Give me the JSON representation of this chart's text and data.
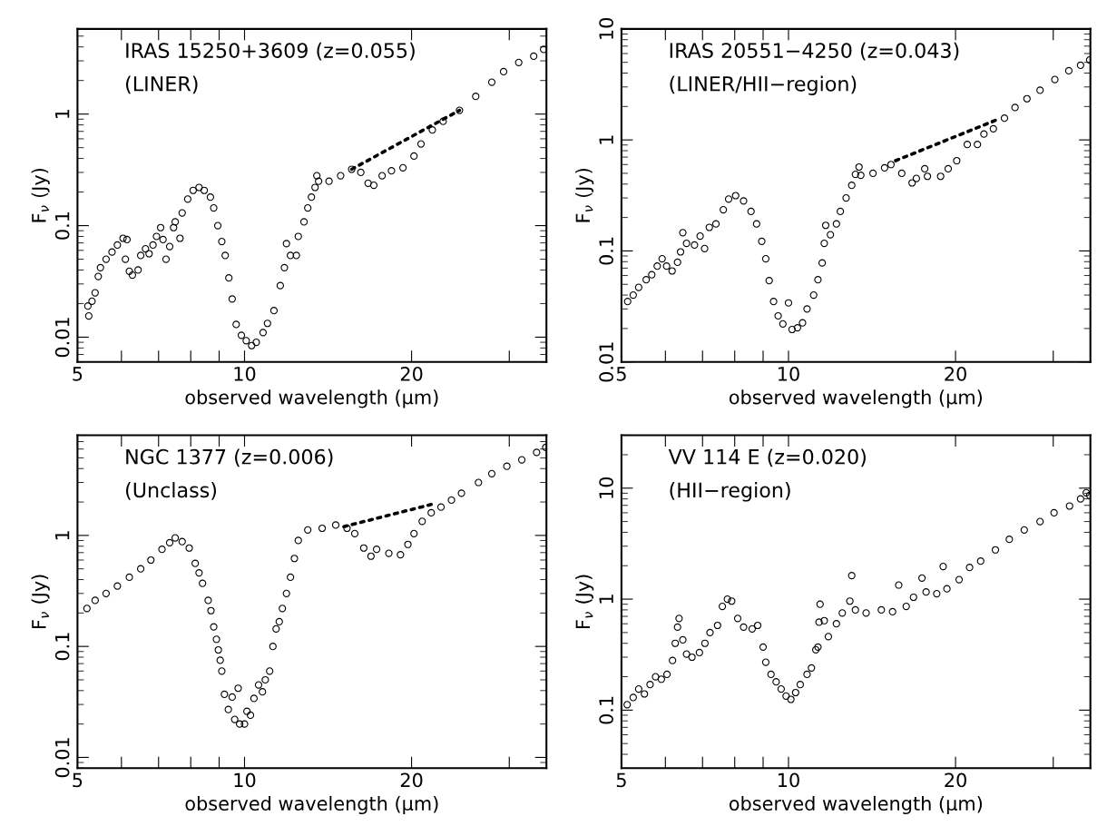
{
  "chart_data": [
    {
      "type": "scatter",
      "xlabel": "observed wavelength (μm)",
      "ylabel": "F$_{ν}$ (Jy)",
      "annotations": [
        "IRAS 15250+3609 (z=0.055)",
        "(LINER)"
      ],
      "log": "xy",
      "marker": "circle",
      "grid": false,
      "legend": false,
      "xlim": [
        5,
        35
      ],
      "xticks": [
        5,
        {
          "value": 6,
          "label": null
        },
        {
          "value": 7,
          "label": null
        },
        {
          "value": 8,
          "label": null
        },
        {
          "value": 9,
          "label": null
        },
        10,
        20,
        {
          "value": 30,
          "label": null
        }
      ],
      "ylim": [
        0.006,
        5.8
      ],
      "yticks": [
        0.01,
        0.1,
        1
      ],
      "series": [
        {
          "color": "#000000",
          "x": [
            5.22,
            5.24,
            5.31,
            5.38,
            5.45,
            5.5,
            5.63,
            5.77,
            5.9,
            6.04,
            6.14,
            6.1,
            6.2,
            6.28,
            6.43,
            6.5,
            6.63,
            6.73,
            6.84,
            6.94,
            7.06,
            7.13,
            7.22,
            7.33,
            7.45,
            7.5,
            7.65,
            7.72,
            7.9,
            8.08,
            8.28,
            8.46,
            8.68,
            8.8,
            8.95,
            9.1,
            9.23,
            9.37,
            9.5,
            9.66,
            9.87,
            10.07,
            10.3,
            10.5,
            10.8,
            11.0,
            11.3,
            11.6,
            11.8,
            11.9,
            12.1,
            12.4,
            12.5,
            12.8,
            13.0,
            13.2,
            13.4,
            13.5,
            13.6,
            14.2,
            14.9,
            15.6,
            16.2,
            16.7,
            17.1,
            17.7,
            18.4,
            19.3,
            20.2,
            20.8,
            21.8,
            22.8,
            24.4,
            26.1,
            27.9,
            29.3,
            31.2,
            33.2,
            34.6
          ],
          "values": [
            0.019,
            0.0155,
            0.021,
            0.025,
            0.035,
            0.042,
            0.05,
            0.058,
            0.067,
            0.077,
            0.075,
            0.05,
            0.039,
            0.036,
            0.04,
            0.054,
            0.062,
            0.056,
            0.067,
            0.08,
            0.096,
            0.075,
            0.05,
            0.065,
            0.096,
            0.108,
            0.077,
            0.13,
            0.173,
            0.207,
            0.22,
            0.207,
            0.18,
            0.144,
            0.1,
            0.072,
            0.054,
            0.034,
            0.022,
            0.013,
            0.0104,
            0.0093,
            0.0084,
            0.009,
            0.011,
            0.0133,
            0.0173,
            0.029,
            0.042,
            0.069,
            0.054,
            0.054,
            0.08,
            0.108,
            0.144,
            0.18,
            0.22,
            0.28,
            0.25,
            0.25,
            0.28,
            0.32,
            0.3,
            0.24,
            0.23,
            0.28,
            0.31,
            0.33,
            0.42,
            0.54,
            0.72,
            0.86,
            1.08,
            1.44,
            1.93,
            2.4,
            2.9,
            3.3,
            3.8
          ]
        },
        {
          "type": "line",
          "line_style": "dotted",
          "marker": "none",
          "color": "#000000",
          "x": [
            15.6,
            24.4
          ],
          "values": [
            0.32,
            1.08
          ]
        }
      ]
    },
    {
      "type": "scatter",
      "xlabel": "observed wavelength (μm)",
      "ylabel": "F$_{ν}$ (Jy)",
      "annotations": [
        "IRAS 20551−4250 (z=0.043)",
        "(LINER/HII−region)"
      ],
      "log": "xy",
      "marker": "circle",
      "grid": false,
      "legend": false,
      "xlim": [
        5,
        35
      ],
      "xticks": [
        5,
        {
          "value": 6,
          "label": null
        },
        {
          "value": 7,
          "label": null
        },
        {
          "value": 8,
          "label": null
        },
        {
          "value": 9,
          "label": null
        },
        10,
        20,
        {
          "value": 30,
          "label": null
        }
      ],
      "ylim": [
        0.01,
        10
      ],
      "yticks": [
        0.01,
        0.1,
        1,
        10
      ],
      "series": [
        {
          "color": "#000000",
          "x": [
            5.13,
            5.25,
            5.37,
            5.54,
            5.67,
            5.8,
            5.92,
            6.03,
            6.17,
            6.31,
            6.39,
            6.45,
            6.55,
            6.77,
            6.93,
            7.06,
            7.2,
            7.4,
            7.63,
            7.8,
            8.03,
            8.3,
            8.56,
            8.76,
            8.95,
            9.1,
            9.23,
            9.4,
            9.58,
            9.77,
            10.0,
            10.15,
            10.38,
            10.6,
            10.8,
            11.1,
            11.3,
            11.5,
            11.6,
            11.67,
            11.9,
            12.2,
            12.4,
            12.7,
            13.0,
            13.2,
            13.4,
            13.5,
            14.2,
            14.9,
            15.3,
            16.0,
            16.7,
            17.0,
            17.6,
            17.8,
            18.8,
            19.4,
            20.1,
            21.0,
            21.9,
            22.5,
            23.4,
            24.5,
            25.6,
            26.9,
            28.4,
            30.2,
            32.0,
            33.6,
            34.9
          ],
          "values": [
            0.035,
            0.04,
            0.047,
            0.055,
            0.061,
            0.073,
            0.085,
            0.073,
            0.066,
            0.079,
            0.098,
            0.146,
            0.117,
            0.113,
            0.136,
            0.105,
            0.163,
            0.175,
            0.235,
            0.293,
            0.315,
            0.282,
            0.227,
            0.175,
            0.122,
            0.085,
            0.054,
            0.035,
            0.026,
            0.022,
            0.034,
            0.0196,
            0.0203,
            0.0225,
            0.03,
            0.04,
            0.055,
            0.078,
            0.117,
            0.17,
            0.14,
            0.175,
            0.227,
            0.3,
            0.39,
            0.49,
            0.57,
            0.48,
            0.5,
            0.56,
            0.6,
            0.5,
            0.41,
            0.45,
            0.55,
            0.47,
            0.47,
            0.55,
            0.65,
            0.91,
            0.91,
            1.13,
            1.26,
            1.57,
            1.96,
            2.35,
            2.8,
            3.5,
            4.2,
            4.7,
            5.25
          ]
        },
        {
          "type": "line",
          "line_style": "dotted",
          "marker": "none",
          "color": "#000000",
          "x": [
            15.6,
            23.6
          ],
          "values": [
            0.65,
            1.5
          ]
        }
      ]
    },
    {
      "type": "scatter",
      "xlabel": "observed wavelength (μm)",
      "ylabel": "F$_{ν}$ (Jy)",
      "annotations": [
        "NGC 1377 (z=0.006)",
        "(Unclass)"
      ],
      "log": "xy",
      "marker": "circle",
      "grid": false,
      "legend": false,
      "xlim": [
        5,
        35
      ],
      "xticks": [
        5,
        {
          "value": 6,
          "label": null
        },
        {
          "value": 7,
          "label": null
        },
        {
          "value": 8,
          "label": null
        },
        {
          "value": 9,
          "label": null
        },
        10,
        20,
        {
          "value": 30,
          "label": null
        }
      ],
      "ylim": [
        0.008,
        8
      ],
      "yticks": [
        0.01,
        0.1,
        1
      ],
      "series": [
        {
          "color": "#000000",
          "x": [
            5.2,
            5.38,
            5.63,
            5.9,
            6.2,
            6.5,
            6.78,
            7.1,
            7.33,
            7.5,
            7.72,
            7.95,
            8.15,
            8.28,
            8.4,
            8.6,
            8.7,
            8.8,
            8.9,
            8.97,
            9.04,
            9.1,
            9.2,
            9.35,
            9.5,
            9.6,
            9.74,
            9.8,
            10.0,
            10.1,
            10.25,
            10.4,
            10.6,
            10.77,
            10.9,
            11.1,
            11.25,
            11.4,
            11.55,
            11.7,
            11.9,
            12.1,
            12.3,
            12.5,
            13.0,
            13.8,
            14.6,
            15.3,
            15.8,
            16.4,
            16.9,
            17.3,
            18.2,
            19.1,
            19.7,
            20.2,
            20.9,
            21.7,
            22.6,
            23.6,
            24.6,
            26.4,
            27.9,
            29.7,
            31.6,
            33.6,
            34.9
          ],
          "values": [
            0.22,
            0.26,
            0.3,
            0.35,
            0.42,
            0.5,
            0.6,
            0.75,
            0.86,
            0.95,
            0.88,
            0.77,
            0.56,
            0.46,
            0.37,
            0.26,
            0.21,
            0.15,
            0.116,
            0.093,
            0.075,
            0.06,
            0.037,
            0.027,
            0.035,
            0.022,
            0.042,
            0.02,
            0.02,
            0.026,
            0.024,
            0.034,
            0.045,
            0.039,
            0.05,
            0.06,
            0.1,
            0.144,
            0.167,
            0.22,
            0.3,
            0.42,
            0.62,
            0.9,
            1.12,
            1.16,
            1.24,
            1.16,
            1.04,
            0.77,
            0.65,
            0.75,
            0.69,
            0.67,
            0.83,
            1.04,
            1.34,
            1.6,
            1.8,
            2.08,
            2.4,
            3.0,
            3.6,
            4.2,
            4.8,
            5.6,
            6.2
          ]
        },
        {
          "type": "line",
          "line_style": "dotted",
          "marker": "none",
          "color": "#000000",
          "x": [
            15.1,
            21.7
          ],
          "values": [
            1.2,
            1.9
          ]
        }
      ]
    },
    {
      "type": "scatter",
      "xlabel": "observed wavelength (μm)",
      "ylabel": "F$_{ν}$ (Jy)",
      "annotations": [
        "VV 114 E (z=0.020)",
        "(HII−region)"
      ],
      "log": "xy",
      "marker": "circle",
      "grid": false,
      "legend": false,
      "xlim": [
        5,
        35
      ],
      "xticks": [
        5,
        {
          "value": 6,
          "label": null
        },
        {
          "value": 7,
          "label": null
        },
        {
          "value": 8,
          "label": null
        },
        {
          "value": 9,
          "label": null
        },
        10,
        20,
        {
          "value": 30,
          "label": null
        }
      ],
      "ylim": [
        0.03,
        30
      ],
      "yticks": [
        0.1,
        1,
        10
      ],
      "series": [
        {
          "color": "#000000",
          "x": [
            5.12,
            5.25,
            5.37,
            5.5,
            5.63,
            5.76,
            5.9,
            6.04,
            6.18,
            6.25,
            6.31,
            6.35,
            6.45,
            6.55,
            6.7,
            6.91,
            7.07,
            7.22,
            7.45,
            7.6,
            7.76,
            7.9,
            8.1,
            8.3,
            8.6,
            8.8,
            9.0,
            9.1,
            9.3,
            9.5,
            9.7,
            9.9,
            10.1,
            10.3,
            10.5,
            10.8,
            11.0,
            11.2,
            11.3,
            11.35,
            11.4,
            11.6,
            11.8,
            12.2,
            12.5,
            12.9,
            13.0,
            13.2,
            13.8,
            14.7,
            15.4,
            15.8,
            16.3,
            16.8,
            17.4,
            17.7,
            18.5,
            19.0,
            19.3,
            20.3,
            21.2,
            22.2,
            23.6,
            25.0,
            26.6,
            28.4,
            30.1,
            32.1,
            33.6,
            34.4,
            34.9
          ],
          "values": [
            0.112,
            0.13,
            0.155,
            0.14,
            0.17,
            0.2,
            0.19,
            0.21,
            0.28,
            0.4,
            0.56,
            0.67,
            0.43,
            0.32,
            0.3,
            0.33,
            0.4,
            0.5,
            0.58,
            0.86,
            1.0,
            0.96,
            0.67,
            0.56,
            0.54,
            0.58,
            0.37,
            0.27,
            0.21,
            0.18,
            0.155,
            0.134,
            0.125,
            0.144,
            0.17,
            0.21,
            0.24,
            0.35,
            0.37,
            0.62,
            0.9,
            0.64,
            0.46,
            0.6,
            0.75,
            0.96,
            1.63,
            0.8,
            0.75,
            0.8,
            0.77,
            1.34,
            0.86,
            1.04,
            1.55,
            1.16,
            1.12,
            1.97,
            1.24,
            1.5,
            1.93,
            2.2,
            2.78,
            3.46,
            4.2,
            5.0,
            6.0,
            6.9,
            8.0,
            9.1,
            8.6
          ]
        }
      ]
    }
  ]
}
